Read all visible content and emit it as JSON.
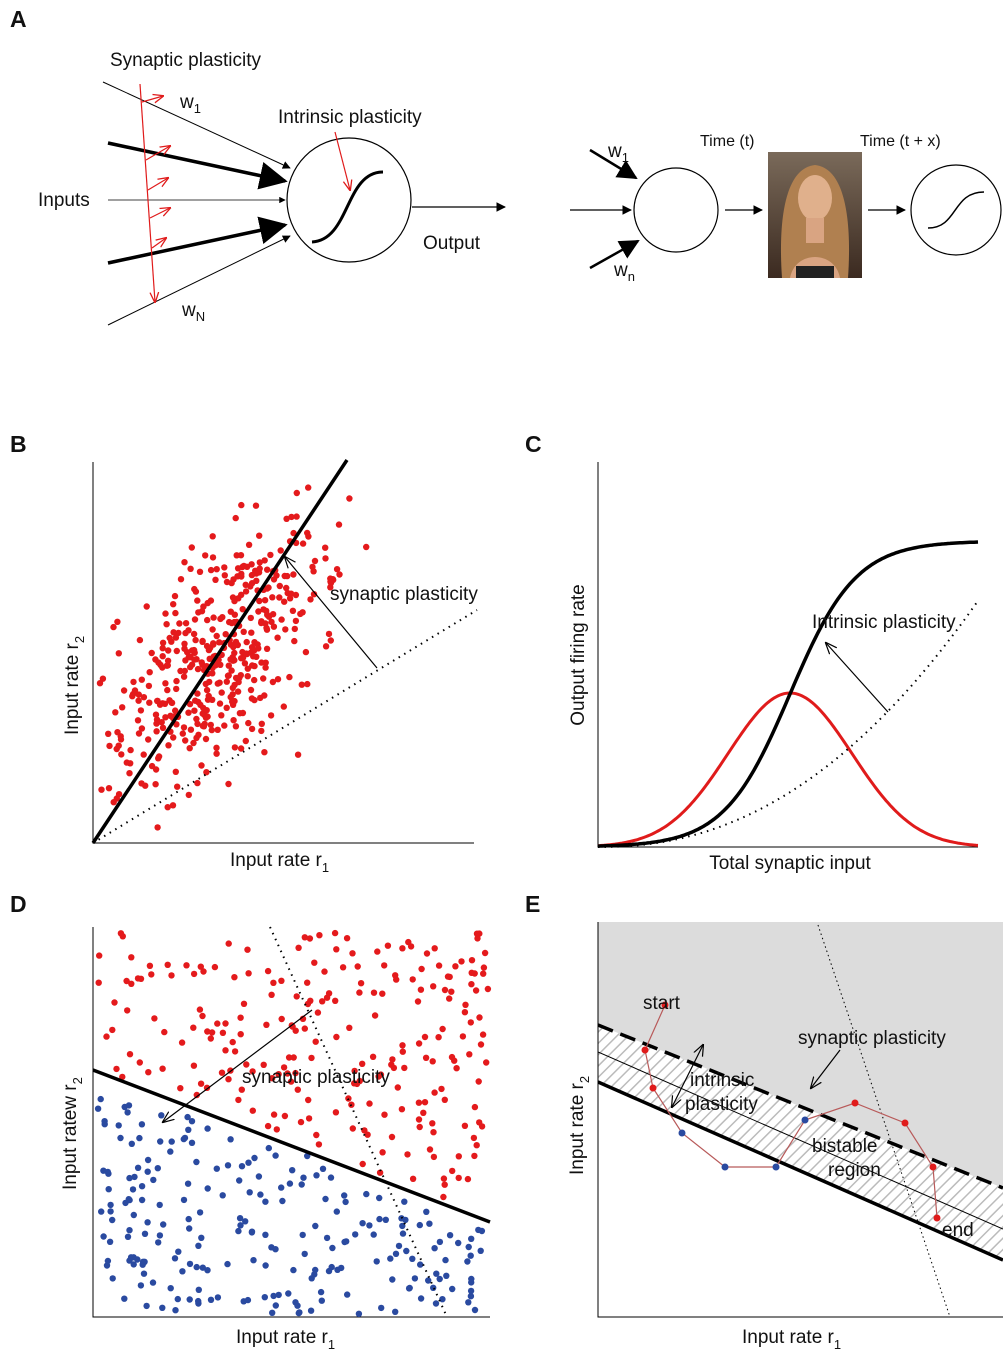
{
  "panels": {
    "a": {
      "letter": "A",
      "synaptic_plasticity": "Synaptic plasticity",
      "w1": "w",
      "w1_sub": "1",
      "intrinsic_plasticity": "Intrinsic plasticity",
      "inputs": "Inputs",
      "output": "Output",
      "wN": "w",
      "wN_sub": "N",
      "right": {
        "w1": "w",
        "w1_sub": "1",
        "wn": "w",
        "wn_sub": "n",
        "time_t": "Time (t)",
        "time_tx": "Time (t + x)"
      }
    },
    "b": {
      "letter": "B",
      "x_label": "Input rate r",
      "x_sub": "1",
      "y_label": "Input rate r",
      "y_sub": "2",
      "annotation": "synaptic plasticity"
    },
    "c": {
      "letter": "C",
      "x_label": "Total synaptic input",
      "y_label": "Output firing rate",
      "annotation": "Intrinsic plasticity"
    },
    "d": {
      "letter": "D",
      "x_label": "Input rate r",
      "x_sub": "1",
      "y_label": "Input ratew r",
      "y_sub": "2",
      "annotation": "synaptic plasticity"
    },
    "e": {
      "letter": "E",
      "x_label": "Input rate r",
      "x_sub": "1",
      "y_label": "Input rate r",
      "y_sub": "2",
      "start": "start",
      "end": "end",
      "synaptic_plasticity": "synaptic plasticity",
      "intrinsic_1": "intrinsic",
      "intrinsic_2": "plasticity",
      "bistable_1": "bistable",
      "bistable_2": "region"
    }
  }
}
